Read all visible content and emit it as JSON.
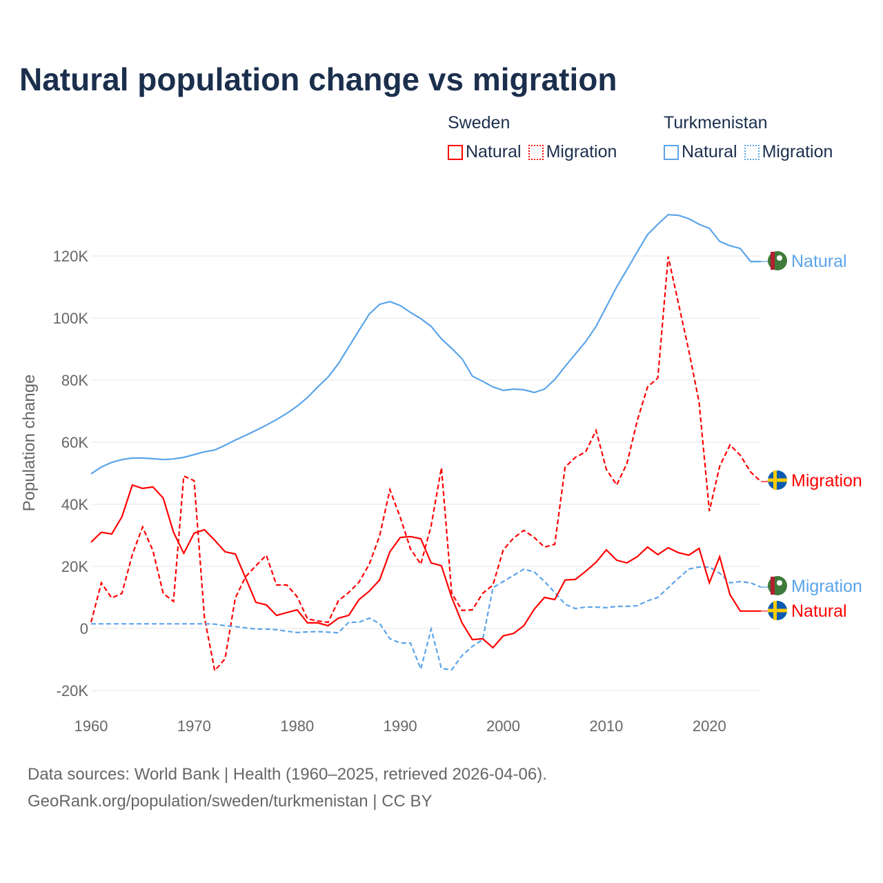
{
  "title": "Natural population change vs migration",
  "legend": {
    "groups": [
      {
        "name": "Sweden",
        "items": [
          {
            "label": "Natural",
            "style": "solid",
            "color": "#ff0000"
          },
          {
            "label": "Migration",
            "style": "dotted",
            "color": "#ff0000"
          }
        ]
      },
      {
        "name": "Turkmenistan",
        "items": [
          {
            "label": "Natural",
            "style": "solid",
            "color": "#5ba4ea"
          },
          {
            "label": "Migration",
            "style": "dotted",
            "color": "#5ba4ea"
          }
        ]
      }
    ]
  },
  "footer": {
    "line1": "Data sources: World Bank | Health (1960–2025, retrieved 2026-04-06).",
    "line2": "GeoRank.org/population/sweden/turkmenistan | CC BY"
  },
  "chart_data": {
    "type": "line",
    "title": "Natural population change vs migration",
    "xlabel": "",
    "ylabel": "Population change",
    "xlim": [
      1960,
      2025
    ],
    "ylim": [
      -20000,
      120000
    ],
    "x_ticks": [
      1960,
      1970,
      1980,
      1990,
      2000,
      2010,
      2020
    ],
    "y_ticks": [
      -20000,
      0,
      20000,
      40000,
      60000,
      80000,
      100000,
      120000
    ],
    "y_tick_labels": [
      "-20K",
      "0",
      "20K",
      "40K",
      "60K",
      "80K",
      "100K",
      "120K"
    ],
    "grid": true,
    "legend_position": "top-right",
    "x_start": 1960,
    "series": [
      {
        "name": "Turkmenistan Natural",
        "country": "Turkmenistan",
        "end_label": "Natural",
        "color": "#5ba4ea",
        "dash": false,
        "flag": "turkmenistan",
        "values": [
          49.8,
          52,
          53.5,
          54.4,
          54.9,
          54.9,
          54.7,
          54.4,
          54.6,
          55.1,
          56,
          56.9,
          57.5,
          59,
          60.7,
          62.2,
          63.8,
          65.5,
          67.3,
          69.3,
          71.6,
          74.4,
          77.8,
          81,
          85.3,
          90.7,
          96,
          101.3,
          104.4,
          105.3,
          104,
          101.8,
          99.8,
          97.3,
          93.3,
          90.2,
          86.9,
          81.3,
          79.6,
          77.8,
          76.7,
          77.1,
          76.9,
          76,
          77.1,
          80.2,
          84.4,
          88.4,
          92.4,
          97.3,
          103.6,
          110,
          115.6,
          121.3,
          126.9,
          130.2,
          133.3,
          133.1,
          132,
          130.2,
          128.9,
          124.7,
          123.3,
          122.4,
          118.2,
          118.2
        ]
      },
      {
        "name": "Sweden Migration",
        "country": "Sweden",
        "end_label": "Migration",
        "color": "#ff0000",
        "dash": true,
        "flag": "sweden",
        "values": [
          2,
          14.7,
          9.8,
          11.3,
          23.8,
          32.7,
          25.1,
          11.3,
          8.7,
          49.1,
          47.6,
          3.6,
          -13.6,
          -9.8,
          9.8,
          16.7,
          20.2,
          23.6,
          14,
          14,
          10.2,
          3.1,
          2.4,
          2,
          8.9,
          11.6,
          14.9,
          20.7,
          29.8,
          44.7,
          35.8,
          25.6,
          20.7,
          33.1,
          51.8,
          11.3,
          5.8,
          6,
          11.3,
          14,
          25.3,
          29.1,
          31.6,
          29.3,
          26.2,
          27.1,
          52,
          55.1,
          56.9,
          63.8,
          51.3,
          46.2,
          53.1,
          66.9,
          77.8,
          80.7,
          119.8,
          104.7,
          89.6,
          72.9,
          37.8,
          52.2,
          59.1,
          55.8,
          50.4,
          47.3
        ]
      },
      {
        "name": "Turkmenistan Migration",
        "country": "Turkmenistan",
        "end_label": "Migration",
        "color": "#5ba4ea",
        "dash": true,
        "flag": "turkmenistan",
        "values": [
          1.5,
          1.5,
          1.5,
          1.5,
          1.5,
          1.5,
          1.5,
          1.5,
          1.5,
          1.5,
          1.5,
          1.5,
          1.4,
          0.9,
          0.6,
          0.2,
          -0.2,
          -0.2,
          -0.4,
          -0.9,
          -1.3,
          -1.1,
          -1,
          -1.2,
          -1.4,
          2,
          2,
          3.3,
          1.6,
          -3.3,
          -4.7,
          -4.7,
          -13.1,
          -0.2,
          -12.9,
          -13.3,
          -8.7,
          -5.8,
          -3.6,
          13.1,
          15.1,
          17.1,
          19.1,
          18.2,
          15.1,
          11.6,
          7.8,
          6.4,
          6.9,
          6.9,
          6.7,
          7.1,
          7.1,
          7.3,
          8.9,
          10,
          13.1,
          16.2,
          19.1,
          19.8,
          19.8,
          17.8,
          14.7,
          15.1,
          14.7,
          13.3
        ]
      },
      {
        "name": "Sweden Natural",
        "country": "Sweden",
        "end_label": "Natural",
        "color": "#ff0000",
        "dash": false,
        "flag": "sweden",
        "values": [
          27.8,
          31,
          30.4,
          36,
          46.2,
          45.1,
          45.6,
          42,
          31,
          24.2,
          30.7,
          31.8,
          28.4,
          24.7,
          24,
          16.2,
          8.4,
          7.6,
          4.2,
          5.1,
          6,
          1.8,
          1.8,
          0.9,
          3.3,
          4.2,
          9.3,
          12,
          15.6,
          24.7,
          29.3,
          29.6,
          28.9,
          21.1,
          20.2,
          10,
          1.8,
          -3.6,
          -3.3,
          -6.2,
          -2.4,
          -1.6,
          0.9,
          6.2,
          10,
          9.3,
          15.6,
          15.8,
          18.4,
          21.3,
          25.3,
          22,
          21.1,
          23.1,
          26.2,
          23.8,
          26,
          24.4,
          23.6,
          25.8,
          14.7,
          23.1,
          10.9,
          5.6,
          5.6,
          5.6
        ]
      }
    ],
    "value_unit": "thousands"
  }
}
